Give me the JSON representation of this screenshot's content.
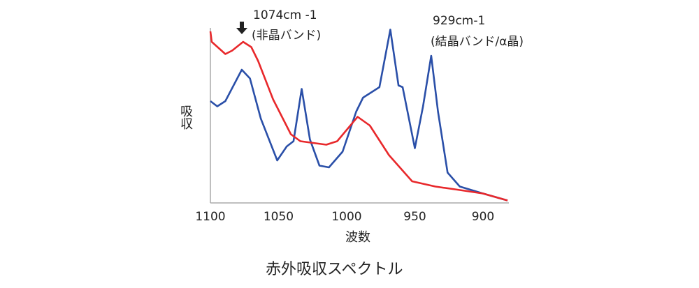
{
  "chart_data": {
    "type": "line",
    "title": "赤外吸収スペクトル",
    "xlabel": "波数",
    "ylabel": "吸収",
    "xlim": [
      1100,
      882
    ],
    "ylim": [
      0,
      100
    ],
    "xticks": [
      1100,
      1050,
      1000,
      950,
      900
    ],
    "grid": false,
    "series": [
      {
        "name": "blue",
        "color": "#2a4fa8",
        "x": [
          1100,
          1095,
          1089,
          1077,
          1071,
          1063,
          1051,
          1044,
          1039,
          1033,
          1027,
          1020,
          1013,
          1003,
          993,
          988,
          976,
          968,
          962,
          959,
          950,
          944,
          938,
          933,
          926,
          917,
          900,
          882
        ],
        "y": [
          58,
          55,
          58,
          76,
          71,
          48,
          24,
          32,
          35,
          65,
          36,
          21,
          20,
          29,
          52,
          60,
          66,
          99,
          67,
          66,
          31,
          55,
          84,
          52,
          17,
          9,
          5,
          1
        ]
      },
      {
        "name": "red",
        "color": "#e8282b",
        "x": [
          1100,
          1099,
          1089,
          1084,
          1076,
          1070,
          1065,
          1054,
          1041,
          1034,
          1015,
          1007,
          992,
          983,
          969,
          952,
          935,
          917,
          900,
          882
        ],
        "y": [
          98,
          92,
          85,
          87,
          92,
          89,
          81,
          59,
          39,
          35,
          33,
          35,
          49,
          44,
          27,
          12,
          9,
          7,
          5,
          1
        ]
      }
    ],
    "annotations": [
      {
        "line1": "1074cm -1",
        "line2": "(非晶バンド)",
        "arrow": "down-arrow"
      },
      {
        "line1": "929cm-1",
        "line2": "(結晶バンド/α晶)"
      }
    ]
  }
}
